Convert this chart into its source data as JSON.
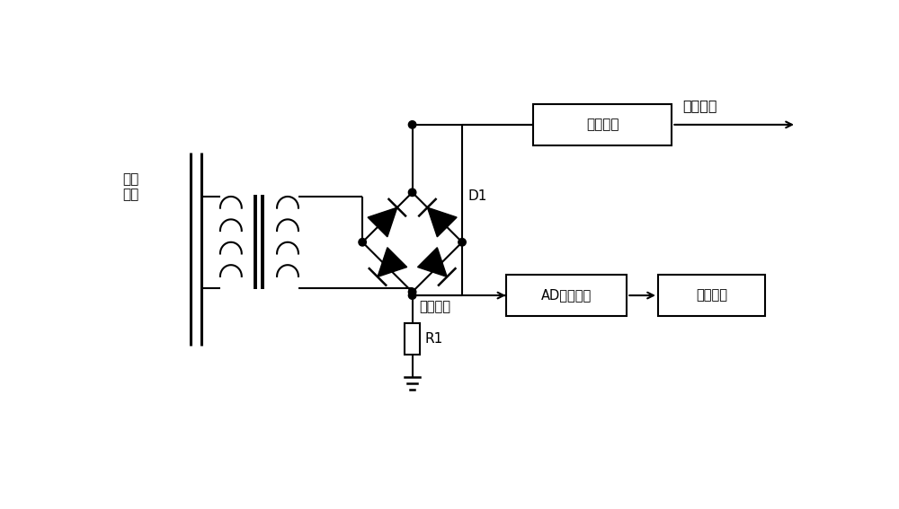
{
  "bg_color": "#ffffff",
  "label_yici": "一次\n母线",
  "label_wending": "稳压电路",
  "label_supply": "供电电源",
  "label_ad": "AD转换电路",
  "label_control": "控制电路",
  "label_d1": "D1",
  "label_r1": "R1",
  "label_sample": "采样信号"
}
